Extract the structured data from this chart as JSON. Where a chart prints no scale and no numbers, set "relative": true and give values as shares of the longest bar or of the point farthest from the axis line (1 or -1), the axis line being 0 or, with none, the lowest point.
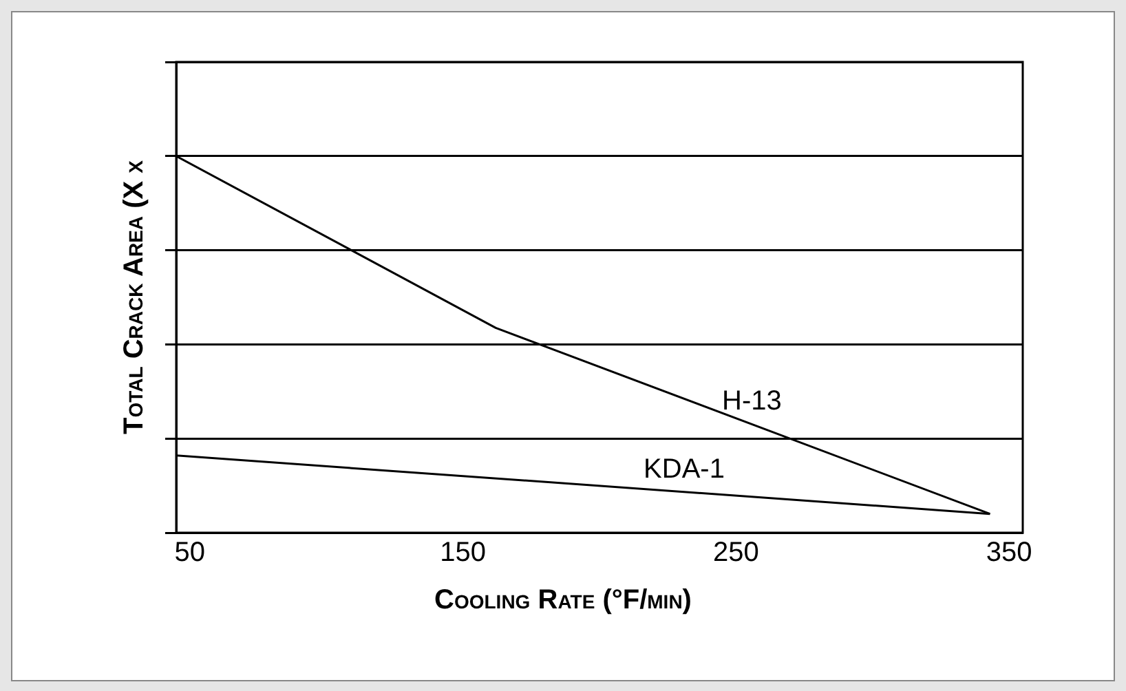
{
  "chart_data": {
    "type": "line",
    "xlabel": "Cooling Rate (°F/min)",
    "ylabel": "Total Crack Area (X x",
    "relative": true,
    "xlim": [
      45,
      355
    ],
    "xticks": [
      50,
      150,
      250,
      350
    ],
    "grid": "y",
    "legend": false,
    "marker": "none",
    "line_style": "solid",
    "series": [
      {
        "name": "H-13",
        "color": "#000000",
        "x": [
          45,
          162,
          343
        ],
        "values": [
          1,
          0.544,
          0.05
        ]
      },
      {
        "name": "KDA-1",
        "color": "#000000",
        "x": [
          45,
          343
        ],
        "values": [
          0.205,
          0.05
        ]
      }
    ]
  }
}
